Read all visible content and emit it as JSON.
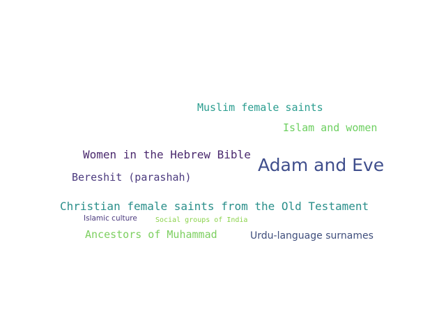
{
  "words": [
    {
      "text": "Muslim female saints",
      "color": "#2a9d8f"
    },
    {
      "text": "Islam and women",
      "color": "#6ccf5f"
    },
    {
      "text": "Women in the Hebrew Bible",
      "color": "#4b2a6e"
    },
    {
      "text": "Adam and Eve",
      "color": "#3f4e8c"
    },
    {
      "text": "Bereshit (parashah)",
      "color": "#4b3a7e"
    },
    {
      "text": "Christian female saints from the Old Testament",
      "color": "#2a8f8a"
    },
    {
      "text": "Islamic culture",
      "color": "#4b3a7e"
    },
    {
      "text": "Social groups of India",
      "color": "#8ad24a"
    },
    {
      "text": "Ancestors of Muhammad",
      "color": "#7ccf5f"
    },
    {
      "text": "Urdu-language surnames",
      "color": "#3f4e7c"
    }
  ]
}
